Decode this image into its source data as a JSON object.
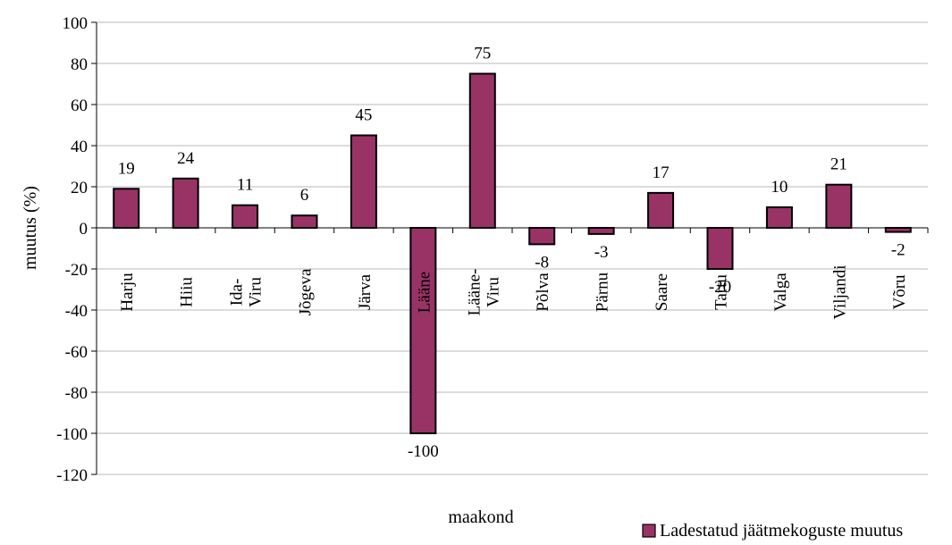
{
  "chart_data": {
    "type": "bar",
    "xlabel": "maakond",
    "ylabel": "muutus (%)",
    "ylim": [
      -120,
      100
    ],
    "ytick_step": 20,
    "grid": true,
    "legend_position": "bottom-right",
    "categories": [
      "Harju",
      "Hiiu",
      "Ida-Viru",
      "Jõgeva",
      "Järva",
      "Lääne",
      "Lääne-Viru",
      "Põlva",
      "Pärnu",
      "Saare",
      "Tartu",
      "Valga",
      "Viljandi",
      "Võru"
    ],
    "category_lines": [
      [
        "Harju"
      ],
      [
        "Hiiu"
      ],
      [
        "Ida-",
        "Viru"
      ],
      [
        "Jõgeva"
      ],
      [
        "Järva"
      ],
      [
        "Lääne"
      ],
      [
        "Lääne-",
        "Viru"
      ],
      [
        "Põlva"
      ],
      [
        "Pärnu"
      ],
      [
        "Saare"
      ],
      [
        "Tartu"
      ],
      [
        "Valga"
      ],
      [
        "Viljandi"
      ],
      [
        "Võru"
      ]
    ],
    "series": [
      {
        "name": "Ladestatud jäätmekoguste muutus",
        "color": "#993366",
        "values": [
          19,
          24,
          11,
          6,
          45,
          -100,
          75,
          -8,
          -3,
          17,
          -20,
          10,
          21,
          -2
        ]
      }
    ]
  }
}
